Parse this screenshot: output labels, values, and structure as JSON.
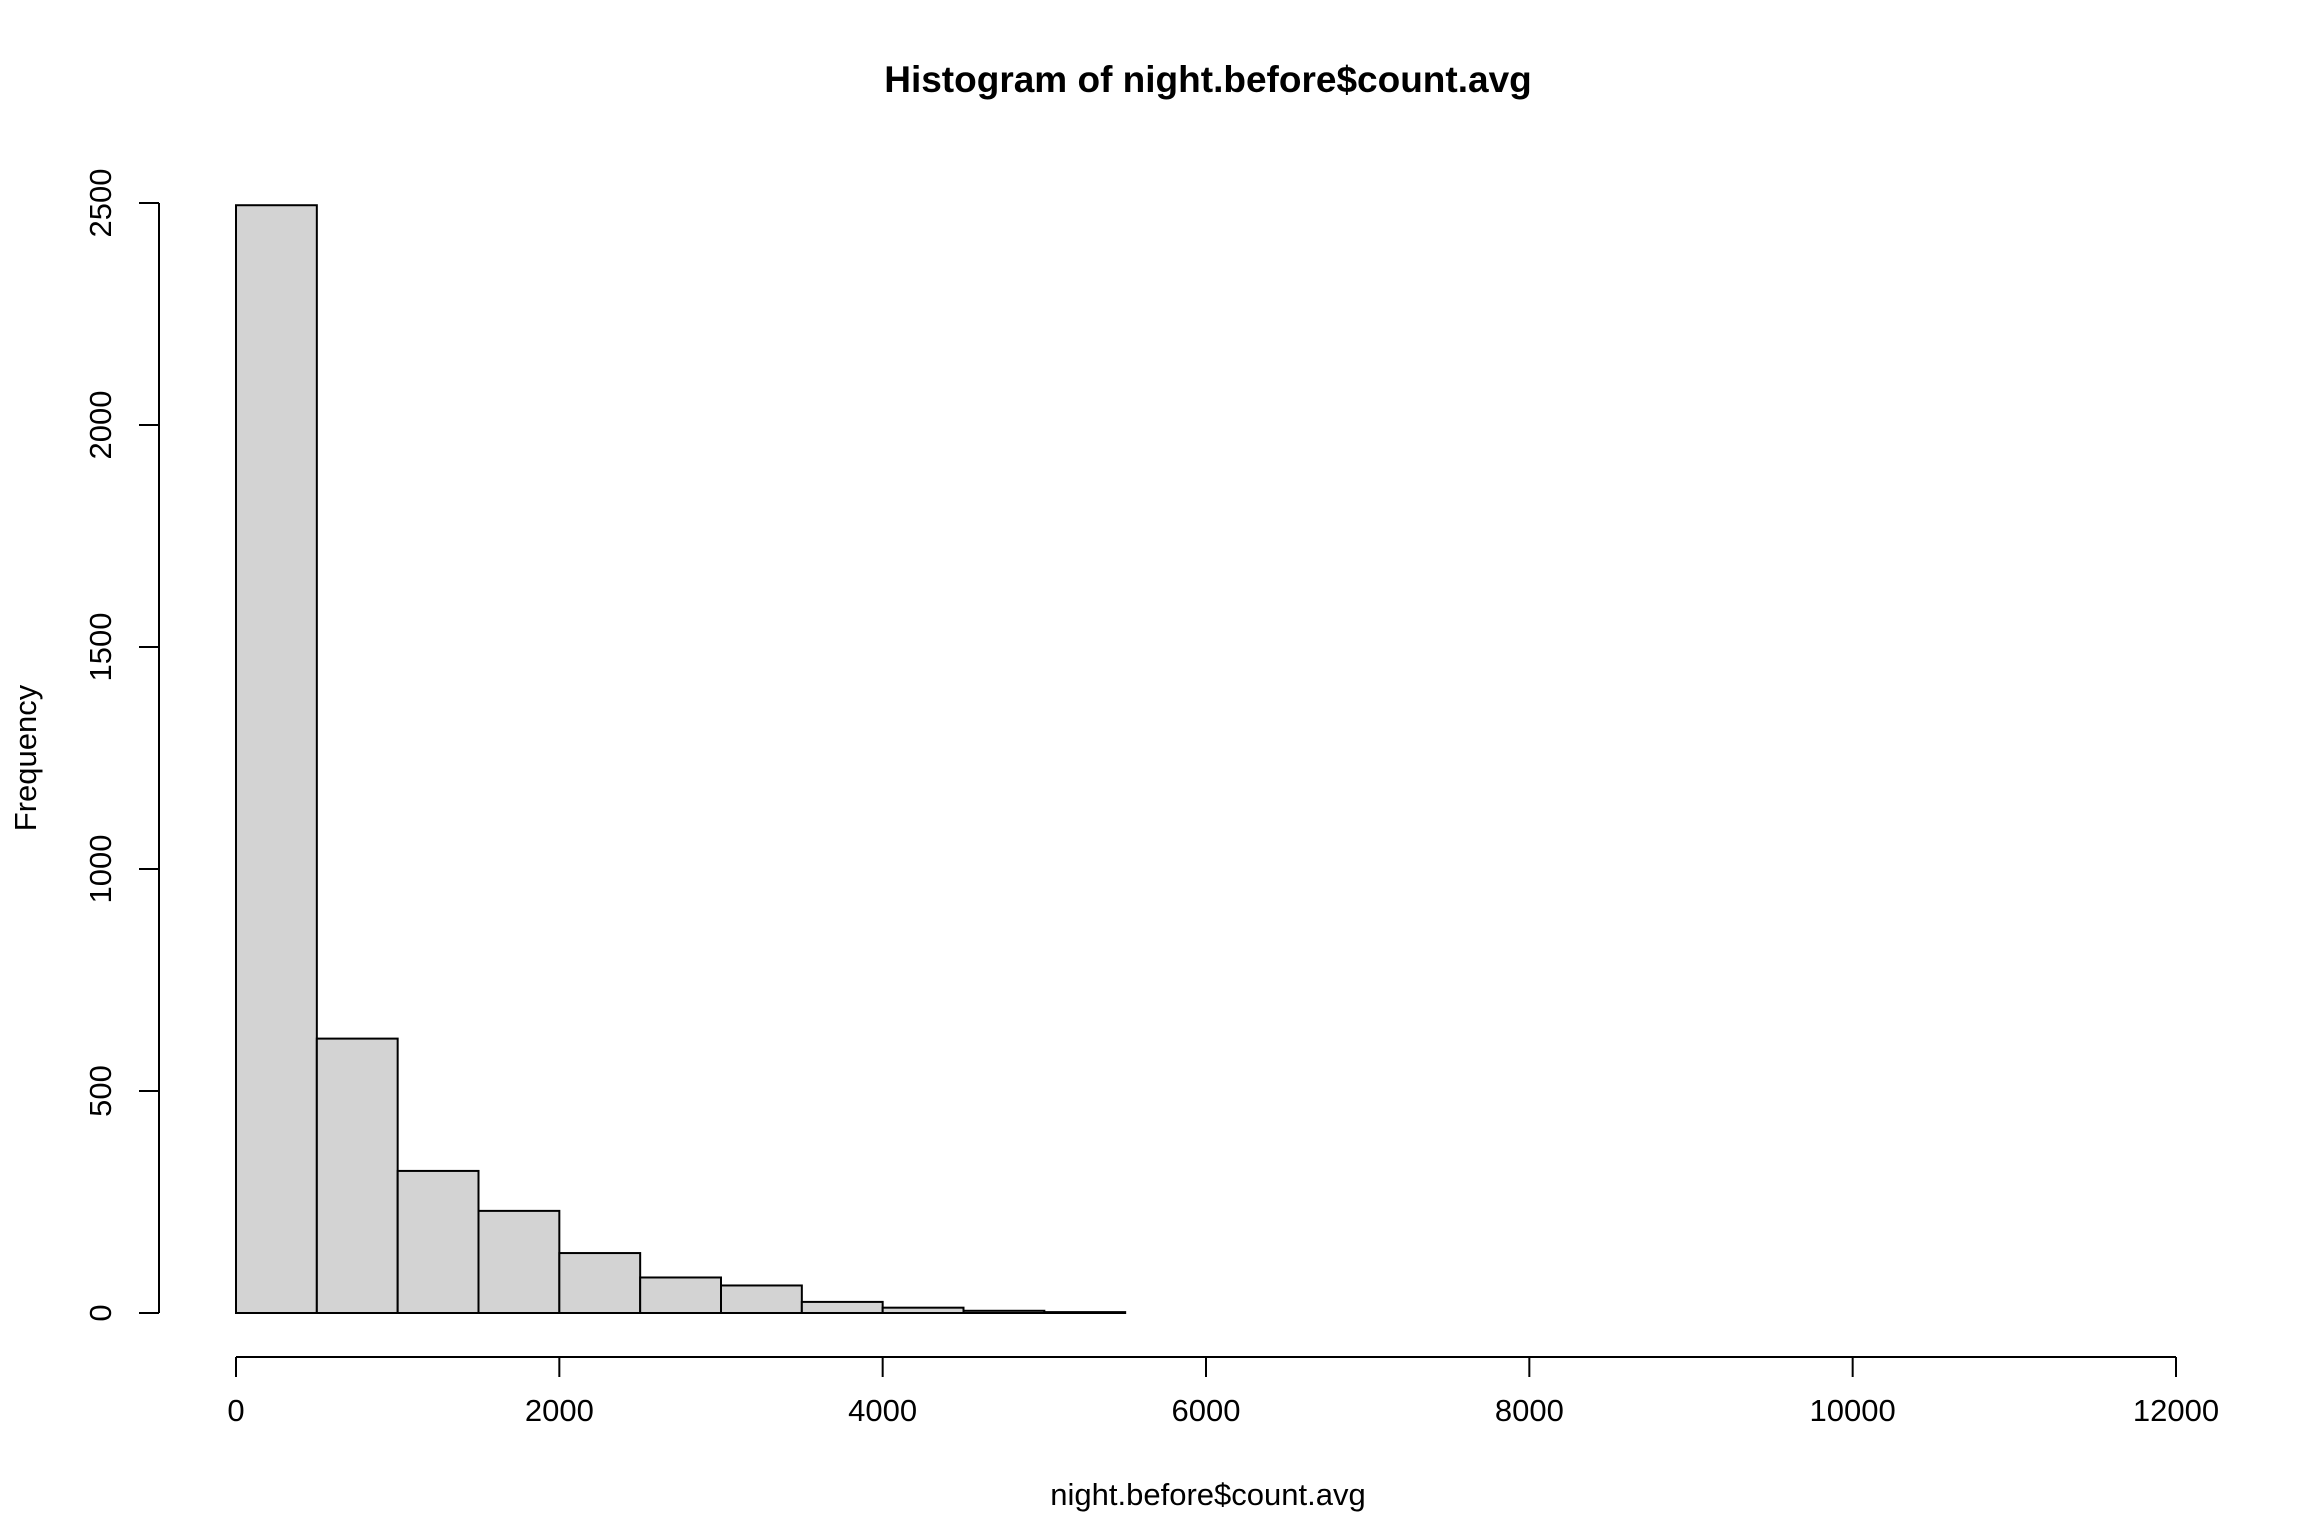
{
  "chart_data": {
    "type": "bar",
    "title": "Histogram of night.before$count.avg",
    "xlabel": "night.before$count.avg",
    "ylabel": "Frequency",
    "xlim": [
      0,
      12000
    ],
    "ylim": [
      0,
      2500
    ],
    "x_ticks": [
      "0",
      "2000",
      "4000",
      "6000",
      "8000",
      "10000",
      "12000"
    ],
    "y_ticks": [
      "0",
      "500",
      "1000",
      "1500",
      "2000",
      "2500"
    ],
    "x_tick_values": [
      0,
      2000,
      4000,
      6000,
      8000,
      10000,
      12000
    ],
    "y_tick_values": [
      0,
      500,
      1000,
      1500,
      2000,
      2500
    ],
    "bin_width": 500,
    "bins": [
      {
        "start": 0,
        "end": 500,
        "count": 2495
      },
      {
        "start": 500,
        "end": 1000,
        "count": 618
      },
      {
        "start": 1000,
        "end": 1500,
        "count": 320
      },
      {
        "start": 1500,
        "end": 2000,
        "count": 230
      },
      {
        "start": 2000,
        "end": 2500,
        "count": 135
      },
      {
        "start": 2500,
        "end": 3000,
        "count": 80
      },
      {
        "start": 3000,
        "end": 3500,
        "count": 62
      },
      {
        "start": 3500,
        "end": 4000,
        "count": 25
      },
      {
        "start": 4000,
        "end": 4500,
        "count": 12
      },
      {
        "start": 4500,
        "end": 5000,
        "count": 5
      },
      {
        "start": 5000,
        "end": 5500,
        "count": 2
      },
      {
        "start": 5500,
        "end": 6000,
        "count": 0
      },
      {
        "start": 6000,
        "end": 6500,
        "count": 0
      },
      {
        "start": 6500,
        "end": 7000,
        "count": 0
      },
      {
        "start": 7000,
        "end": 7500,
        "count": 0
      },
      {
        "start": 7500,
        "end": 8000,
        "count": 0
      },
      {
        "start": 8000,
        "end": 8500,
        "count": 0
      },
      {
        "start": 8500,
        "end": 9000,
        "count": 0
      },
      {
        "start": 9000,
        "end": 9500,
        "count": 0
      },
      {
        "start": 9500,
        "end": 10000,
        "count": 0
      },
      {
        "start": 10000,
        "end": 10500,
        "count": 0
      },
      {
        "start": 10500,
        "end": 11000,
        "count": 0
      },
      {
        "start": 11000,
        "end": 11500,
        "count": 0
      },
      {
        "start": 11500,
        "end": 12000,
        "count": 0
      }
    ],
    "bar_fill": "#d3d3d3",
    "bar_stroke": "#000000",
    "grid": false,
    "legend": "none"
  }
}
